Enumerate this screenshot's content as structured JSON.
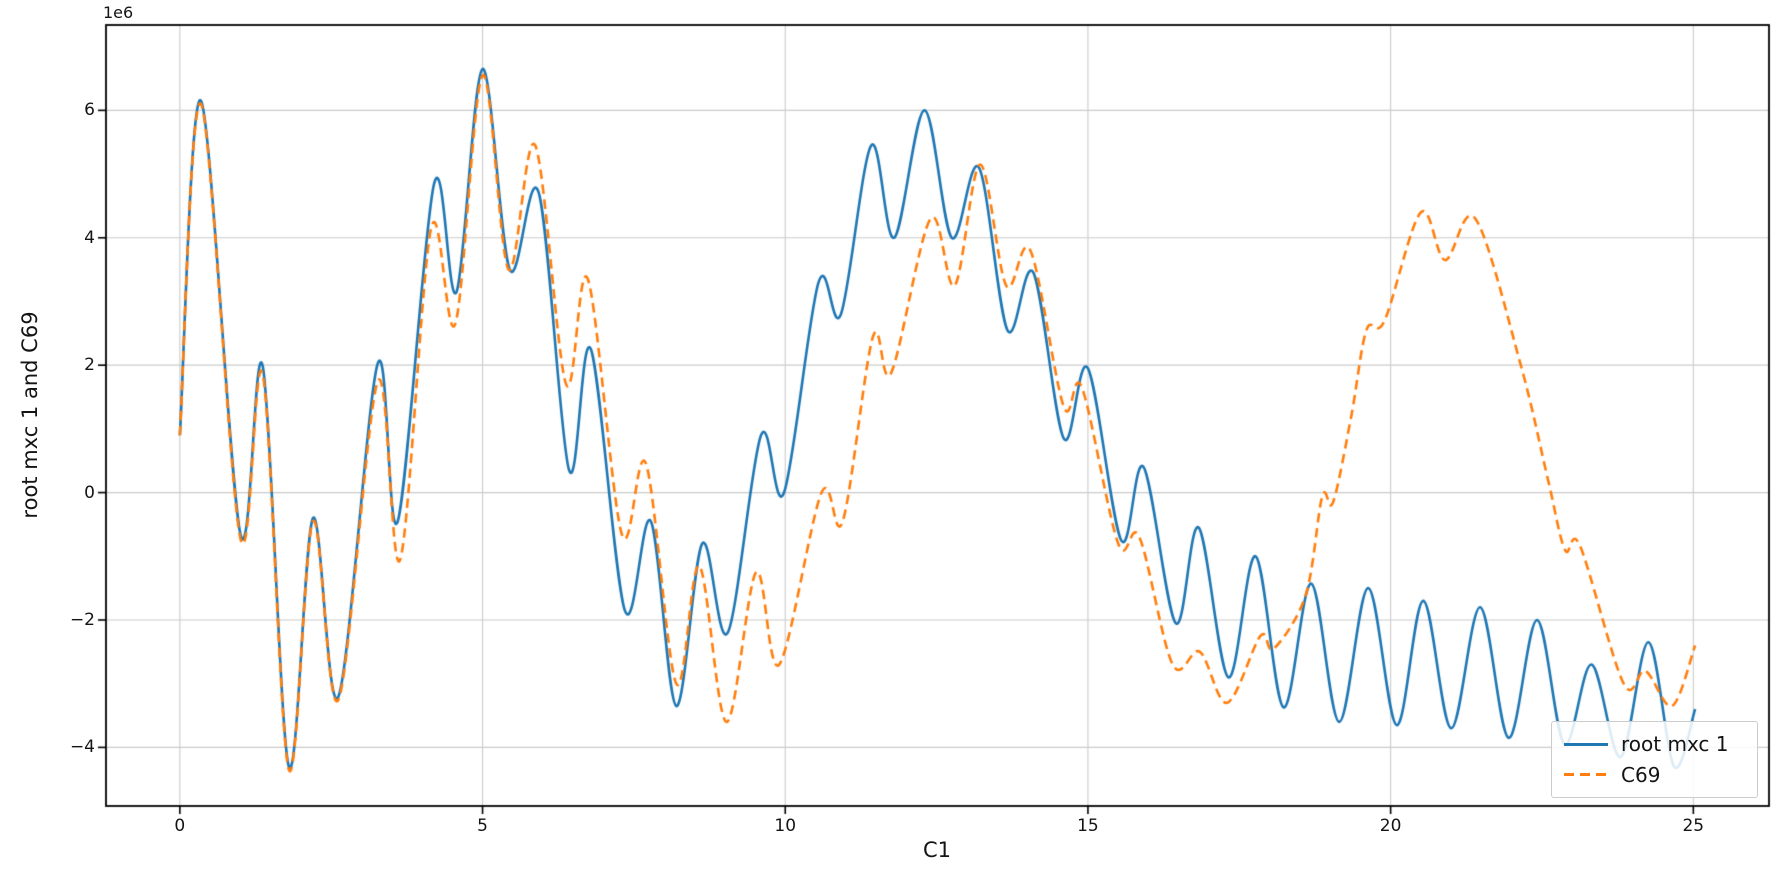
{
  "chart_data": {
    "type": "line",
    "title": "",
    "xlabel": "C1",
    "ylabel": "root mxc 1 and C69",
    "y_offset_text": "1e6",
    "y_units_multiplier": 1000000,
    "grid": true,
    "grid_color": "#cccccc",
    "background_color": "#ffffff",
    "xlim": [
      -1.22,
      26.25
    ],
    "ylim": [
      -4.92,
      7.34
    ],
    "x_ticks": [
      0,
      5,
      10,
      15,
      20,
      25
    ],
    "x_tick_labels": [
      "0",
      "5",
      "10",
      "15",
      "20",
      "25"
    ],
    "y_ticks": [
      -4,
      -2,
      0,
      2,
      4,
      6
    ],
    "y_tick_labels": [
      "−4",
      "−2",
      "0",
      "2",
      "4",
      "6"
    ],
    "legend": {
      "position": "lower right",
      "entries": [
        {
          "label": "root mxc 1",
          "color": "#1f77b4",
          "linestyle": "solid"
        },
        {
          "label": "C69",
          "color": "#ff7f0e",
          "linestyle": "dashed"
        }
      ]
    },
    "series": [
      {
        "name": "root mxc 1",
        "color": "#1f77b4",
        "linestyle": "solid",
        "points": [
          [
            0.0,
            0.9
          ],
          [
            0.35,
            6.15
          ],
          [
            1.0,
            -0.65
          ],
          [
            1.37,
            1.98
          ],
          [
            1.8,
            -4.3
          ],
          [
            2.2,
            -0.4
          ],
          [
            2.62,
            -3.2
          ],
          [
            3.27,
            2.03
          ],
          [
            3.6,
            -0.45
          ],
          [
            4.2,
            4.85
          ],
          [
            4.57,
            3.15
          ],
          [
            5.0,
            6.65
          ],
          [
            5.45,
            3.5
          ],
          [
            5.93,
            4.7
          ],
          [
            6.43,
            0.35
          ],
          [
            6.79,
            2.25
          ],
          [
            7.35,
            -1.85
          ],
          [
            7.78,
            -0.45
          ],
          [
            8.2,
            -3.35
          ],
          [
            8.63,
            -0.8
          ],
          [
            9.05,
            -2.2
          ],
          [
            9.6,
            0.9
          ],
          [
            9.98,
            0.0
          ],
          [
            10.55,
            3.3
          ],
          [
            10.92,
            2.8
          ],
          [
            11.42,
            5.45
          ],
          [
            11.8,
            4.0
          ],
          [
            12.3,
            6.0
          ],
          [
            12.75,
            4.0
          ],
          [
            13.2,
            5.1
          ],
          [
            13.67,
            2.55
          ],
          [
            14.1,
            3.45
          ],
          [
            14.6,
            0.85
          ],
          [
            15.0,
            1.95
          ],
          [
            15.55,
            -0.75
          ],
          [
            15.92,
            0.4
          ],
          [
            16.45,
            -2.05
          ],
          [
            16.83,
            -0.55
          ],
          [
            17.32,
            -2.9
          ],
          [
            17.77,
            -1.0
          ],
          [
            18.23,
            -3.37
          ],
          [
            18.69,
            -1.43
          ],
          [
            19.15,
            -3.6
          ],
          [
            19.63,
            -1.5
          ],
          [
            20.1,
            -3.65
          ],
          [
            20.54,
            -1.7
          ],
          [
            21.0,
            -3.7
          ],
          [
            21.48,
            -1.8
          ],
          [
            21.95,
            -3.85
          ],
          [
            22.42,
            -2.0
          ],
          [
            22.87,
            -3.95
          ],
          [
            23.32,
            -2.7
          ],
          [
            23.8,
            -4.15
          ],
          [
            24.26,
            -2.35
          ],
          [
            24.68,
            -4.3
          ],
          [
            25.03,
            -3.4
          ]
        ]
      },
      {
        "name": "C69",
        "color": "#ff7f0e",
        "linestyle": "dashed",
        "points": [
          [
            0.0,
            0.9
          ],
          [
            0.35,
            6.1
          ],
          [
            1.0,
            -0.72
          ],
          [
            1.37,
            1.85
          ],
          [
            1.8,
            -4.35
          ],
          [
            2.2,
            -0.45
          ],
          [
            2.62,
            -3.25
          ],
          [
            3.27,
            1.75
          ],
          [
            3.64,
            -1.05
          ],
          [
            4.15,
            4.15
          ],
          [
            4.55,
            2.65
          ],
          [
            5.0,
            6.55
          ],
          [
            5.43,
            3.5
          ],
          [
            5.87,
            5.45
          ],
          [
            6.38,
            1.7
          ],
          [
            6.74,
            3.35
          ],
          [
            7.3,
            -0.65
          ],
          [
            7.7,
            0.45
          ],
          [
            8.2,
            -3.0
          ],
          [
            8.58,
            -1.15
          ],
          [
            9.03,
            -3.6
          ],
          [
            9.52,
            -1.25
          ],
          [
            9.9,
            -2.7
          ],
          [
            10.6,
            0.0
          ],
          [
            10.95,
            -0.45
          ],
          [
            11.45,
            2.45
          ],
          [
            11.75,
            1.88
          ],
          [
            12.4,
            4.3
          ],
          [
            12.8,
            3.25
          ],
          [
            13.22,
            5.15
          ],
          [
            13.65,
            3.25
          ],
          [
            14.05,
            3.8
          ],
          [
            14.6,
            1.35
          ],
          [
            14.9,
            1.65
          ],
          [
            15.5,
            -0.8
          ],
          [
            15.85,
            -0.7
          ],
          [
            16.4,
            -2.7
          ],
          [
            16.85,
            -2.5
          ],
          [
            17.3,
            -3.3
          ],
          [
            17.85,
            -2.25
          ],
          [
            18.07,
            -2.45
          ],
          [
            18.6,
            -1.6
          ],
          [
            18.87,
            -0.06
          ],
          [
            19.05,
            -0.15
          ],
          [
            19.35,
            1.2
          ],
          [
            19.6,
            2.55
          ],
          [
            19.9,
            2.7
          ],
          [
            20.5,
            4.4
          ],
          [
            20.9,
            3.65
          ],
          [
            21.4,
            4.3
          ],
          [
            22.15,
            2.0
          ],
          [
            22.6,
            0.2
          ],
          [
            22.88,
            -0.9
          ],
          [
            23.13,
            -0.84
          ],
          [
            23.85,
            -3.0
          ],
          [
            24.21,
            -2.8
          ],
          [
            24.65,
            -3.35
          ],
          [
            25.03,
            -2.4
          ]
        ]
      }
    ]
  }
}
